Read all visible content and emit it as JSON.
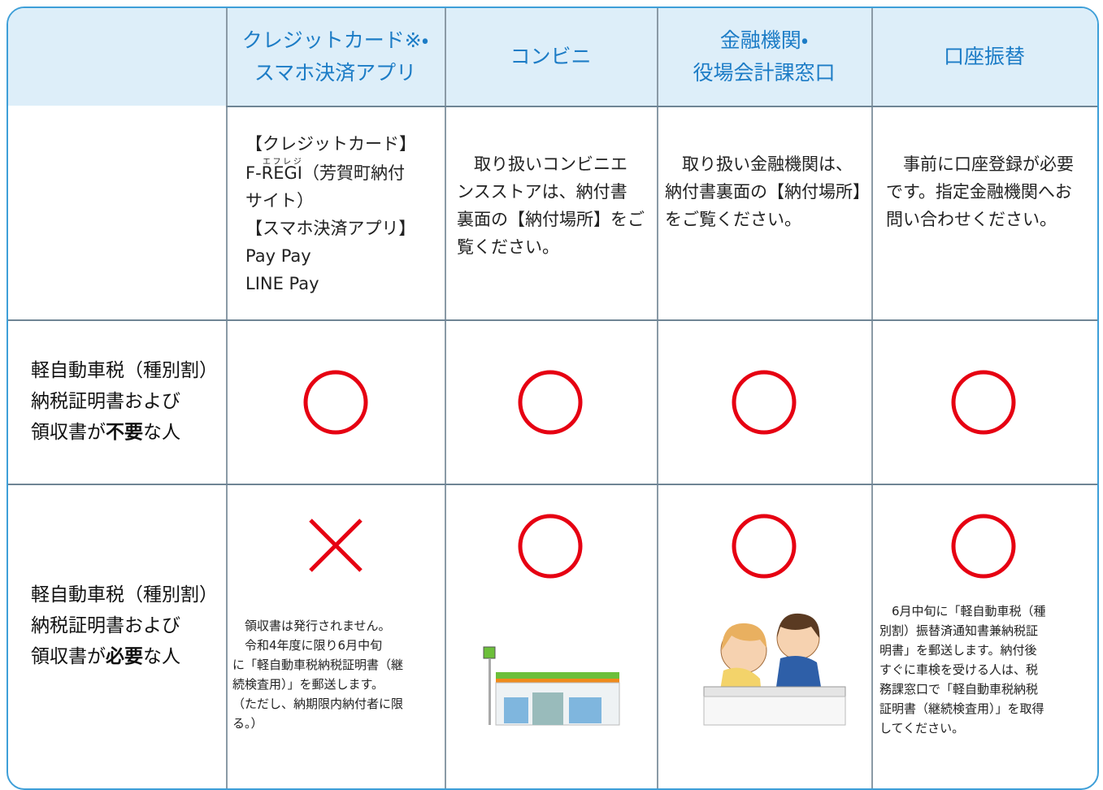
{
  "header": [
    {
      "lines": [
        "クレジットカード※・",
        "スマホ決済アプリ"
      ]
    },
    {
      "lines": [
        "コンビニ"
      ]
    },
    {
      "lines": [
        "金融機関・",
        "役場会計課窓口"
      ]
    },
    {
      "lines": [
        "口座振替"
      ]
    }
  ],
  "descriptions": [
    {
      "lines": [
        "【クレジットカード】",
        {
          "before": "F-",
          "base": "REGI",
          "ruby": "エフレジ",
          "after": "（芳賀町納付"
        },
        "サイト）",
        "【スマホ決済アプリ】",
        "Pay Pay",
        "LINE Pay"
      ]
    },
    {
      "lines": [
        "取り扱いコンビニエ",
        "ンスストアは、納付書",
        "裏面の【納付場所】をご",
        "覧ください。"
      ]
    },
    {
      "lines": [
        "取り扱い金融機関は、",
        "納付書裏面の【納付場所】",
        "をご覧ください。"
      ]
    },
    {
      "lines": [
        "事前に口座登録が必要",
        "です。指定金融機関へお",
        "問い合わせください。"
      ]
    }
  ],
  "rows": [
    {
      "label": [
        "軽自動車税（種別割）",
        "納税証明書および",
        {
          "before": "領収書が",
          "bold": "不要",
          "after": "な人"
        }
      ]
    },
    {
      "label": [
        "軽自動車税（種別割）",
        "納税証明書および",
        {
          "before": "領収書が",
          "bold": "必要",
          "after": "な人"
        }
      ],
      "credit_note": [
        "領収書は発行されません。",
        "令和4年度に限り6月中旬",
        "に「軽自動車税納税証明書（継",
        "続検査用）」を郵送します。",
        "（ただし、納期限内納付者に限",
        "る。）"
      ],
      "transfer_note": [
        "6月中旬に「軽自動車税（種",
        "別割）振替済通知書兼納税証",
        "明書」を郵送します。納付後",
        "すぐに車検を受ける人は、税",
        "務課窓口で「軽自動車税納税",
        "証明書（継続検査用）」を取得",
        "してください。"
      ]
    }
  ]
}
